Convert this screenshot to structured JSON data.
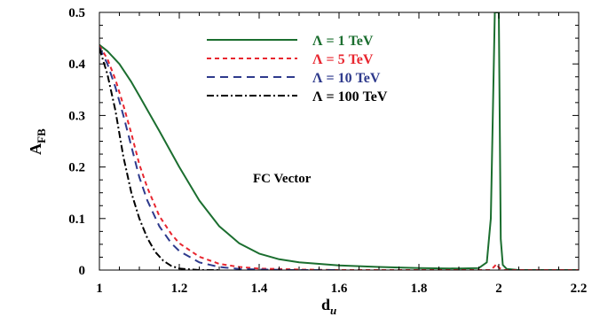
{
  "chart_data": {
    "type": "line",
    "annotation": "FC  Vector",
    "xlabel": "d",
    "xlabel_sub": "u",
    "ylabel": "A",
    "ylabel_sub": "FB",
    "xlim": [
      1,
      2.2
    ],
    "ylim": [
      0,
      0.5
    ],
    "xticks": [
      1,
      1.2,
      1.4,
      1.6,
      1.8,
      2,
      2.2
    ],
    "xtick_labels": [
      "1",
      "1.2",
      "1.4",
      "1.6",
      "1.8",
      "2",
      "2.2"
    ],
    "yticks": [
      0,
      0.1,
      0.2,
      0.3,
      0.4,
      0.5
    ],
    "ytick_labels": [
      "0",
      "0.1",
      "0.2",
      "0.3",
      "0.4",
      "0.5"
    ],
    "grid": false,
    "legend": "top-center",
    "series": [
      {
        "name": "Λ = 1 TeV",
        "color": "#1b6e2f",
        "dash": "solid",
        "x": [
          1.0,
          1.02,
          1.05,
          1.08,
          1.1,
          1.15,
          1.2,
          1.25,
          1.3,
          1.35,
          1.4,
          1.45,
          1.5,
          1.6,
          1.7,
          1.8,
          1.9,
          1.95,
          1.97,
          1.98,
          1.99,
          1.995,
          2.0,
          2.005,
          2.01,
          2.02,
          2.05,
          2.1,
          2.2
        ],
        "y": [
          0.437,
          0.425,
          0.4,
          0.365,
          0.338,
          0.27,
          0.2,
          0.135,
          0.085,
          0.052,
          0.032,
          0.021,
          0.015,
          0.009,
          0.006,
          0.004,
          0.003,
          0.004,
          0.015,
          0.1,
          0.5,
          0.5,
          0.5,
          0.06,
          0.01,
          0.002,
          0.0,
          0.0,
          0.0
        ]
      },
      {
        "name": "Λ = 5 TeV",
        "color": "#e8262f",
        "dash": "5,4",
        "x": [
          1.0,
          1.02,
          1.04,
          1.06,
          1.08,
          1.1,
          1.12,
          1.15,
          1.18,
          1.2,
          1.25,
          1.3,
          1.35,
          1.4,
          1.45,
          1.5,
          1.6,
          1.8,
          1.98,
          1.995,
          2.0,
          2.01,
          2.2
        ],
        "y": [
          0.435,
          0.41,
          0.37,
          0.32,
          0.265,
          0.205,
          0.16,
          0.105,
          0.07,
          0.052,
          0.026,
          0.012,
          0.006,
          0.003,
          0.002,
          0.001,
          0.0,
          0.0,
          0.0,
          0.012,
          0.005,
          0.0,
          0.0
        ]
      },
      {
        "name": "Λ = 10 TeV",
        "color": "#2e3a8c",
        "dash": "9,6",
        "x": [
          1.0,
          1.02,
          1.04,
          1.06,
          1.08,
          1.1,
          1.12,
          1.15,
          1.18,
          1.2,
          1.25,
          1.3,
          1.35,
          1.4,
          1.5,
          1.6
        ],
        "y": [
          0.432,
          0.4,
          0.355,
          0.3,
          0.24,
          0.18,
          0.135,
          0.085,
          0.052,
          0.037,
          0.015,
          0.006,
          0.002,
          0.001,
          0.0,
          0.0
        ]
      },
      {
        "name": "Λ = 100 TeV",
        "color": "#000000",
        "dash": "8,3,2,3",
        "x": [
          1.0,
          1.02,
          1.04,
          1.06,
          1.08,
          1.1,
          1.12,
          1.14,
          1.16,
          1.18,
          1.2,
          1.25,
          1.3
        ],
        "y": [
          0.43,
          0.38,
          0.31,
          0.22,
          0.15,
          0.1,
          0.062,
          0.035,
          0.018,
          0.008,
          0.003,
          0.0,
          0.0
        ]
      }
    ]
  }
}
